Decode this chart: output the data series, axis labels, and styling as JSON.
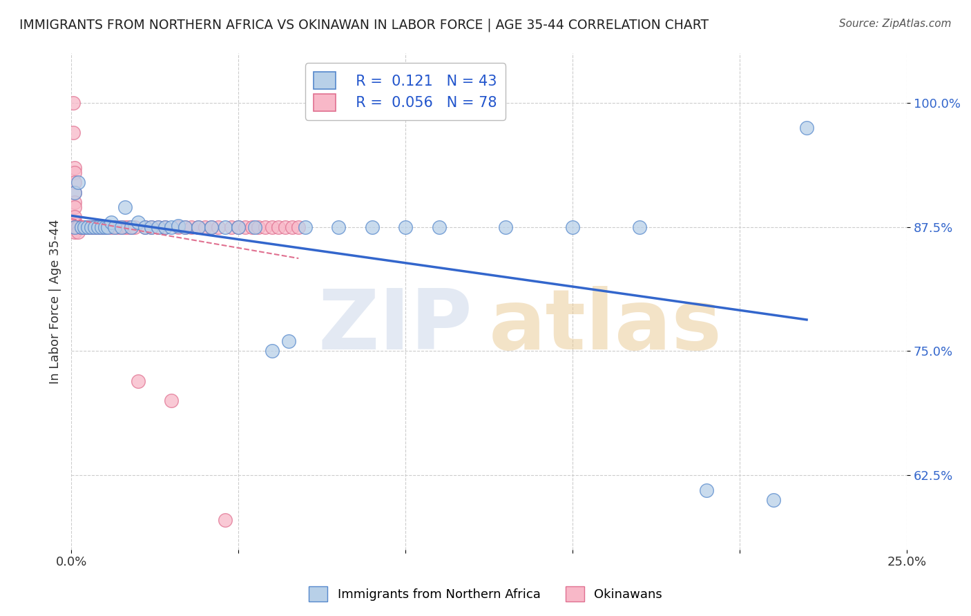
{
  "title": "IMMIGRANTS FROM NORTHERN AFRICA VS OKINAWAN IN LABOR FORCE | AGE 35-44 CORRELATION CHART",
  "source": "Source: ZipAtlas.com",
  "ylabel": "In Labor Force | Age 35-44",
  "xlim": [
    0.0,
    0.25
  ],
  "ylim": [
    0.55,
    1.05
  ],
  "ytick_positions": [
    0.625,
    0.75,
    0.875,
    1.0
  ],
  "ytick_labels": [
    "62.5%",
    "75.0%",
    "87.5%",
    "100.0%"
  ],
  "blue_color": "#b8d0e8",
  "blue_edge_color": "#5588cc",
  "blue_line_color": "#3366cc",
  "pink_color": "#f8b8c8",
  "pink_edge_color": "#e07090",
  "pink_line_color": "#e07090",
  "legend_R_blue": "0.121",
  "legend_N_blue": "43",
  "legend_R_pink": "0.056",
  "legend_N_pink": "78",
  "blue_scatter_x": [
    0.001,
    0.001,
    0.002,
    0.003,
    0.004,
    0.005,
    0.006,
    0.007,
    0.008,
    0.009,
    0.01,
    0.011,
    0.012,
    0.013,
    0.015,
    0.016,
    0.018,
    0.02,
    0.022,
    0.024,
    0.026,
    0.028,
    0.03,
    0.032,
    0.034,
    0.038,
    0.042,
    0.046,
    0.05,
    0.055,
    0.06,
    0.065,
    0.07,
    0.08,
    0.09,
    0.1,
    0.11,
    0.13,
    0.15,
    0.17,
    0.19,
    0.21,
    0.22
  ],
  "blue_scatter_y": [
    0.875,
    0.91,
    0.92,
    0.875,
    0.875,
    0.875,
    0.875,
    0.875,
    0.875,
    0.875,
    0.875,
    0.875,
    0.88,
    0.875,
    0.875,
    0.895,
    0.875,
    0.88,
    0.875,
    0.875,
    0.875,
    0.875,
    0.875,
    0.876,
    0.875,
    0.875,
    0.875,
    0.875,
    0.875,
    0.875,
    0.75,
    0.76,
    0.875,
    0.875,
    0.875,
    0.875,
    0.875,
    0.875,
    0.875,
    0.875,
    0.61,
    0.6,
    0.975
  ],
  "pink_scatter_x": [
    0.0005,
    0.0005,
    0.001,
    0.001,
    0.001,
    0.001,
    0.001,
    0.001,
    0.001,
    0.001,
    0.001,
    0.001,
    0.001,
    0.001,
    0.0015,
    0.0015,
    0.002,
    0.002,
    0.002,
    0.002,
    0.002,
    0.002,
    0.003,
    0.003,
    0.003,
    0.003,
    0.003,
    0.003,
    0.004,
    0.004,
    0.004,
    0.004,
    0.005,
    0.005,
    0.005,
    0.006,
    0.006,
    0.007,
    0.007,
    0.008,
    0.008,
    0.009,
    0.009,
    0.01,
    0.011,
    0.012,
    0.013,
    0.014,
    0.015,
    0.016,
    0.017,
    0.018,
    0.019,
    0.02,
    0.022,
    0.024,
    0.026,
    0.028,
    0.03,
    0.032,
    0.034,
    0.036,
    0.038,
    0.04,
    0.042,
    0.044,
    0.046,
    0.048,
    0.05,
    0.052,
    0.054,
    0.056,
    0.058,
    0.06,
    0.062,
    0.064,
    0.066,
    0.068
  ],
  "pink_scatter_y": [
    1.0,
    0.97,
    0.935,
    0.93,
    0.92,
    0.91,
    0.9,
    0.895,
    0.885,
    0.88,
    0.875,
    0.875,
    0.875,
    0.87,
    0.875,
    0.875,
    0.875,
    0.875,
    0.875,
    0.875,
    0.875,
    0.87,
    0.875,
    0.875,
    0.875,
    0.875,
    0.875,
    0.875,
    0.875,
    0.875,
    0.875,
    0.875,
    0.875,
    0.875,
    0.875,
    0.875,
    0.875,
    0.875,
    0.875,
    0.875,
    0.875,
    0.875,
    0.875,
    0.875,
    0.875,
    0.875,
    0.875,
    0.875,
    0.875,
    0.875,
    0.875,
    0.875,
    0.875,
    0.72,
    0.875,
    0.875,
    0.875,
    0.875,
    0.7,
    0.875,
    0.875,
    0.875,
    0.875,
    0.875,
    0.875,
    0.875,
    0.58,
    0.875,
    0.875,
    0.875,
    0.875,
    0.875,
    0.875,
    0.875,
    0.875,
    0.875,
    0.875,
    0.875
  ]
}
